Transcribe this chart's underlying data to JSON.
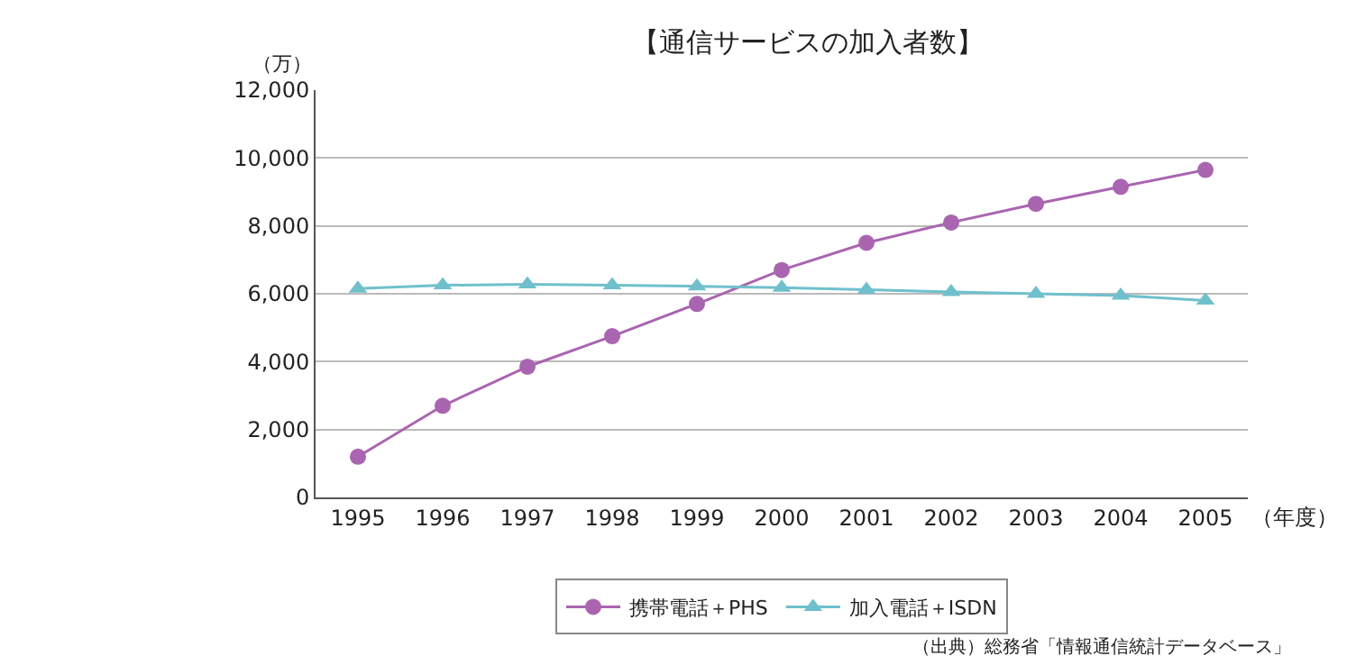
{
  "chart_data": {
    "type": "line",
    "title": "【通信サービスの加入者数】",
    "xlabel": "（年度）",
    "ylabel": "（万）",
    "categories": [
      "1995",
      "1996",
      "1997",
      "1998",
      "1999",
      "2000",
      "2001",
      "2002",
      "2003",
      "2004",
      "2005"
    ],
    "series": [
      {
        "name": "携帯電話＋PHS",
        "color": "#a965b0",
        "marker": "circle",
        "values": [
          1200,
          2700,
          3850,
          4750,
          5700,
          6700,
          7500,
          8100,
          8650,
          9150,
          9650
        ]
      },
      {
        "name": "加入電話＋ISDN",
        "color": "#6fc0cc",
        "marker": "triangle",
        "values": [
          6150,
          6250,
          6280,
          6250,
          6220,
          6180,
          6120,
          6050,
          6000,
          5950,
          5800
        ]
      }
    ],
    "ylim": [
      0,
      12000
    ],
    "yticks": [
      {
        "value": 0,
        "label": "0"
      },
      {
        "value": 2000,
        "label": "2,000"
      },
      {
        "value": 4000,
        "label": "4,000"
      },
      {
        "value": 6000,
        "label": "6,000"
      },
      {
        "value": 8000,
        "label": "8,000"
      },
      {
        "value": 10000,
        "label": "10,000"
      },
      {
        "value": 12000,
        "label": "12,000"
      }
    ],
    "grid": "y",
    "legend": "bottom",
    "line_style": "solid",
    "annotations": [
      "（出典）総務省「情報通信統計データベース」"
    ]
  }
}
